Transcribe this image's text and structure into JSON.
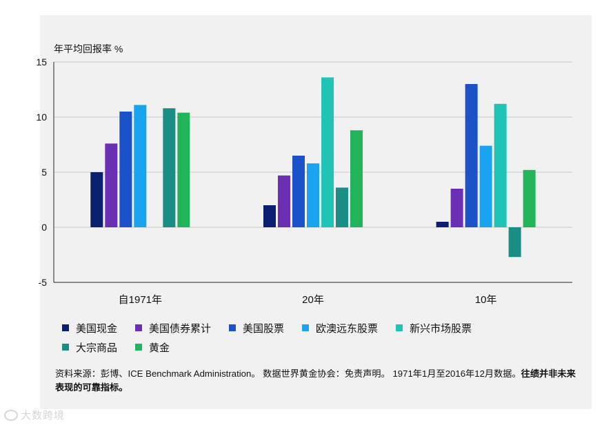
{
  "chart_data": {
    "type": "bar",
    "ylabel": "年平均回报率 %",
    "ylim": [
      -5,
      15
    ],
    "yticks": [
      15,
      10,
      5,
      0,
      -5
    ],
    "categories": [
      "自1971年",
      "20年",
      "10年"
    ],
    "grid": true,
    "legend_position": "bottom",
    "series": [
      {
        "name": "美国现金",
        "color": "#0a1f6e",
        "values": [
          5.0,
          2.0,
          0.5
        ]
      },
      {
        "name": "美国债券累计",
        "color": "#6b2fb3",
        "values": [
          7.6,
          4.7,
          3.5
        ]
      },
      {
        "name": "美国股票",
        "color": "#1c52c9",
        "values": [
          10.5,
          6.5,
          13.0
        ]
      },
      {
        "name": "欧澳远东股票",
        "color": "#1aa3ee",
        "values": [
          11.1,
          5.8,
          7.4
        ]
      },
      {
        "name": "新兴市场股票",
        "color": "#20c4b6",
        "values": [
          null,
          13.6,
          11.2
        ]
      },
      {
        "name": "大宗商品",
        "color": "#1a8e84",
        "values": [
          10.8,
          3.6,
          -2.7
        ]
      },
      {
        "name": "黄金",
        "color": "#22b45a",
        "values": [
          10.4,
          8.8,
          5.2
        ]
      }
    ]
  },
  "legend_rows": [
    [
      0,
      1,
      2,
      3,
      4
    ],
    [
      5,
      6
    ]
  ],
  "source": {
    "text": "资料来源：彭博、ICE Benchmark Administration。 数据世界黄金协会：免责声明。 1971年1月至2016年12月数据。",
    "bold": "往绩并非未来表现的可靠指标。"
  },
  "watermark": {
    "text": "大数跨境"
  }
}
